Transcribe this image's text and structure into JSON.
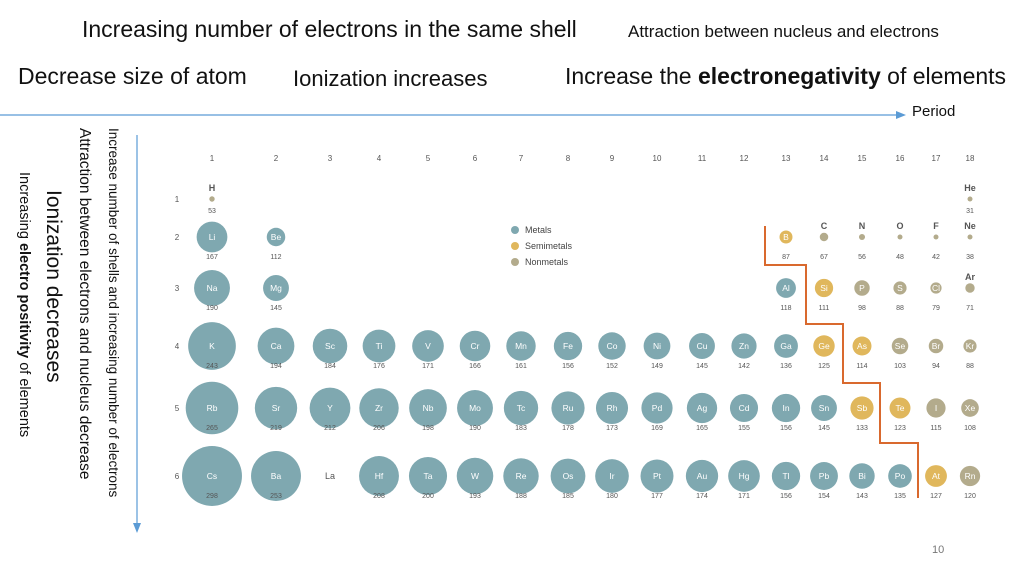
{
  "header": {
    "line1_left": "Increasing number of electrons in the same shell",
    "line1_right": "Attraction between nucleus and electrons",
    "line2_left": "Decrease size of atom",
    "line2_middle": "Ionization increases",
    "line2_right_prefix": "Increase the ",
    "line2_right_bold": "electronegativity",
    "line2_right_suffix": " of elements"
  },
  "period_label": "Period",
  "side": {
    "v1": "Increase number of shells and increasing number of electrons",
    "v2": "Attraction between electrons and nucleus decrease",
    "v3": "Ionization decreases",
    "v4_prefix": "Increasing ",
    "v4_bold": "electro positivity",
    "v4_suffix": "  of elements"
  },
  "page_number": "10",
  "legend": [
    {
      "label": "Metals",
      "color": "#7fa8b0"
    },
    {
      "label": "Semimetals",
      "color": "#e0b75c"
    },
    {
      "label": "Nonmetals",
      "color": "#b3ab8c"
    }
  ],
  "colors": {
    "metal": "#7fa8b0",
    "semimetal": "#e0b75c",
    "nonmetal": "#b3ab8c",
    "divider": "#d9692e",
    "arrow": "#5b9bd5"
  },
  "groups": [
    "1",
    "2",
    "3",
    "4",
    "5",
    "6",
    "7",
    "8",
    "9",
    "10",
    "11",
    "12",
    "13",
    "14",
    "15",
    "16",
    "17",
    "18"
  ],
  "periods": [
    "1",
    "2",
    "3",
    "4",
    "5",
    "6"
  ],
  "elements": [
    {
      "s": "H",
      "g": 1,
      "p": 1,
      "r": 53,
      "t": "n"
    },
    {
      "s": "He",
      "g": 18,
      "p": 1,
      "r": 31,
      "t": "n"
    },
    {
      "s": "Li",
      "g": 1,
      "p": 2,
      "r": 167,
      "t": "m"
    },
    {
      "s": "Be",
      "g": 2,
      "p": 2,
      "r": 112,
      "t": "m"
    },
    {
      "s": "B",
      "g": 13,
      "p": 2,
      "r": 87,
      "t": "s"
    },
    {
      "s": "C",
      "g": 14,
      "p": 2,
      "r": 67,
      "t": "n"
    },
    {
      "s": "N",
      "g": 15,
      "p": 2,
      "r": 56,
      "t": "n"
    },
    {
      "s": "O",
      "g": 16,
      "p": 2,
      "r": 48,
      "t": "n"
    },
    {
      "s": "F",
      "g": 17,
      "p": 2,
      "r": 42,
      "t": "n"
    },
    {
      "s": "Ne",
      "g": 18,
      "p": 2,
      "r": 38,
      "t": "n"
    },
    {
      "s": "Na",
      "g": 1,
      "p": 3,
      "r": 190,
      "t": "m"
    },
    {
      "s": "Mg",
      "g": 2,
      "p": 3,
      "r": 145,
      "t": "m"
    },
    {
      "s": "Al",
      "g": 13,
      "p": 3,
      "r": 118,
      "t": "m"
    },
    {
      "s": "Si",
      "g": 14,
      "p": 3,
      "r": 111,
      "t": "s"
    },
    {
      "s": "P",
      "g": 15,
      "p": 3,
      "r": 98,
      "t": "n"
    },
    {
      "s": "S",
      "g": 16,
      "p": 3,
      "r": 88,
      "t": "n"
    },
    {
      "s": "Cl",
      "g": 17,
      "p": 3,
      "r": 79,
      "t": "n"
    },
    {
      "s": "Ar",
      "g": 18,
      "p": 3,
      "r": 71,
      "t": "n"
    },
    {
      "s": "K",
      "g": 1,
      "p": 4,
      "r": 243,
      "t": "m"
    },
    {
      "s": "Ca",
      "g": 2,
      "p": 4,
      "r": 194,
      "t": "m"
    },
    {
      "s": "Sc",
      "g": 3,
      "p": 4,
      "r": 184,
      "t": "m"
    },
    {
      "s": "Ti",
      "g": 4,
      "p": 4,
      "r": 176,
      "t": "m"
    },
    {
      "s": "V",
      "g": 5,
      "p": 4,
      "r": 171,
      "t": "m"
    },
    {
      "s": "Cr",
      "g": 6,
      "p": 4,
      "r": 166,
      "t": "m"
    },
    {
      "s": "Mn",
      "g": 7,
      "p": 4,
      "r": 161,
      "t": "m"
    },
    {
      "s": "Fe",
      "g": 8,
      "p": 4,
      "r": 156,
      "t": "m"
    },
    {
      "s": "Co",
      "g": 9,
      "p": 4,
      "r": 152,
      "t": "m"
    },
    {
      "s": "Ni",
      "g": 10,
      "p": 4,
      "r": 149,
      "t": "m"
    },
    {
      "s": "Cu",
      "g": 11,
      "p": 4,
      "r": 145,
      "t": "m"
    },
    {
      "s": "Zn",
      "g": 12,
      "p": 4,
      "r": 142,
      "t": "m"
    },
    {
      "s": "Ga",
      "g": 13,
      "p": 4,
      "r": 136,
      "t": "m"
    },
    {
      "s": "Ge",
      "g": 14,
      "p": 4,
      "r": 125,
      "t": "s"
    },
    {
      "s": "As",
      "g": 15,
      "p": 4,
      "r": 114,
      "t": "s"
    },
    {
      "s": "Se",
      "g": 16,
      "p": 4,
      "r": 103,
      "t": "n"
    },
    {
      "s": "Br",
      "g": 17,
      "p": 4,
      "r": 94,
      "t": "n"
    },
    {
      "s": "Kr",
      "g": 18,
      "p": 4,
      "r": 88,
      "t": "n"
    },
    {
      "s": "Rb",
      "g": 1,
      "p": 5,
      "r": 265,
      "t": "m"
    },
    {
      "s": "Sr",
      "g": 2,
      "p": 5,
      "r": 219,
      "t": "m"
    },
    {
      "s": "Y",
      "g": 3,
      "p": 5,
      "r": 212,
      "t": "m"
    },
    {
      "s": "Zr",
      "g": 4,
      "p": 5,
      "r": 206,
      "t": "m"
    },
    {
      "s": "Nb",
      "g": 5,
      "p": 5,
      "r": 198,
      "t": "m"
    },
    {
      "s": "Mo",
      "g": 6,
      "p": 5,
      "r": 190,
      "t": "m"
    },
    {
      "s": "Tc",
      "g": 7,
      "p": 5,
      "r": 183,
      "t": "m"
    },
    {
      "s": "Ru",
      "g": 8,
      "p": 5,
      "r": 178,
      "t": "m"
    },
    {
      "s": "Rh",
      "g": 9,
      "p": 5,
      "r": 173,
      "t": "m"
    },
    {
      "s": "Pd",
      "g": 10,
      "p": 5,
      "r": 169,
      "t": "m"
    },
    {
      "s": "Ag",
      "g": 11,
      "p": 5,
      "r": 165,
      "t": "m"
    },
    {
      "s": "Cd",
      "g": 12,
      "p": 5,
      "r": 155,
      "t": "m"
    },
    {
      "s": "In",
      "g": 13,
      "p": 5,
      "r": 156,
      "t": "m"
    },
    {
      "s": "Sn",
      "g": 14,
      "p": 5,
      "r": 145,
      "t": "m"
    },
    {
      "s": "Sb",
      "g": 15,
      "p": 5,
      "r": 133,
      "t": "s"
    },
    {
      "s": "Te",
      "g": 16,
      "p": 5,
      "r": 123,
      "t": "s"
    },
    {
      "s": "I",
      "g": 17,
      "p": 5,
      "r": 115,
      "t": "n"
    },
    {
      "s": "Xe",
      "g": 18,
      "p": 5,
      "r": 108,
      "t": "n"
    },
    {
      "s": "Cs",
      "g": 1,
      "p": 6,
      "r": 298,
      "t": "m"
    },
    {
      "s": "Ba",
      "g": 2,
      "p": 6,
      "r": 253,
      "t": "m"
    },
    {
      "s": "La",
      "g": 3,
      "p": 6,
      "r": null,
      "t": "none"
    },
    {
      "s": "Hf",
      "g": 4,
      "p": 6,
      "r": 208,
      "t": "m"
    },
    {
      "s": "Ta",
      "g": 5,
      "p": 6,
      "r": 200,
      "t": "m"
    },
    {
      "s": "W",
      "g": 6,
      "p": 6,
      "r": 193,
      "t": "m"
    },
    {
      "s": "Re",
      "g": 7,
      "p": 6,
      "r": 188,
      "t": "m"
    },
    {
      "s": "Os",
      "g": 8,
      "p": 6,
      "r": 185,
      "t": "m"
    },
    {
      "s": "Ir",
      "g": 9,
      "p": 6,
      "r": 180,
      "t": "m"
    },
    {
      "s": "Pt",
      "g": 10,
      "p": 6,
      "r": 177,
      "t": "m"
    },
    {
      "s": "Au",
      "g": 11,
      "p": 6,
      "r": 174,
      "t": "m"
    },
    {
      "s": "Hg",
      "g": 12,
      "p": 6,
      "r": 171,
      "t": "m"
    },
    {
      "s": "Tl",
      "g": 13,
      "p": 6,
      "r": 156,
      "t": "m"
    },
    {
      "s": "Pb",
      "g": 14,
      "p": 6,
      "r": 154,
      "t": "m"
    },
    {
      "s": "Bi",
      "g": 15,
      "p": 6,
      "r": 143,
      "t": "m"
    },
    {
      "s": "Po",
      "g": 16,
      "p": 6,
      "r": 135,
      "t": "m"
    },
    {
      "s": "At",
      "g": 17,
      "p": 6,
      "r": 127,
      "t": "s"
    },
    {
      "s": "Rn",
      "g": 18,
      "p": 6,
      "r": 120,
      "t": "n"
    }
  ]
}
